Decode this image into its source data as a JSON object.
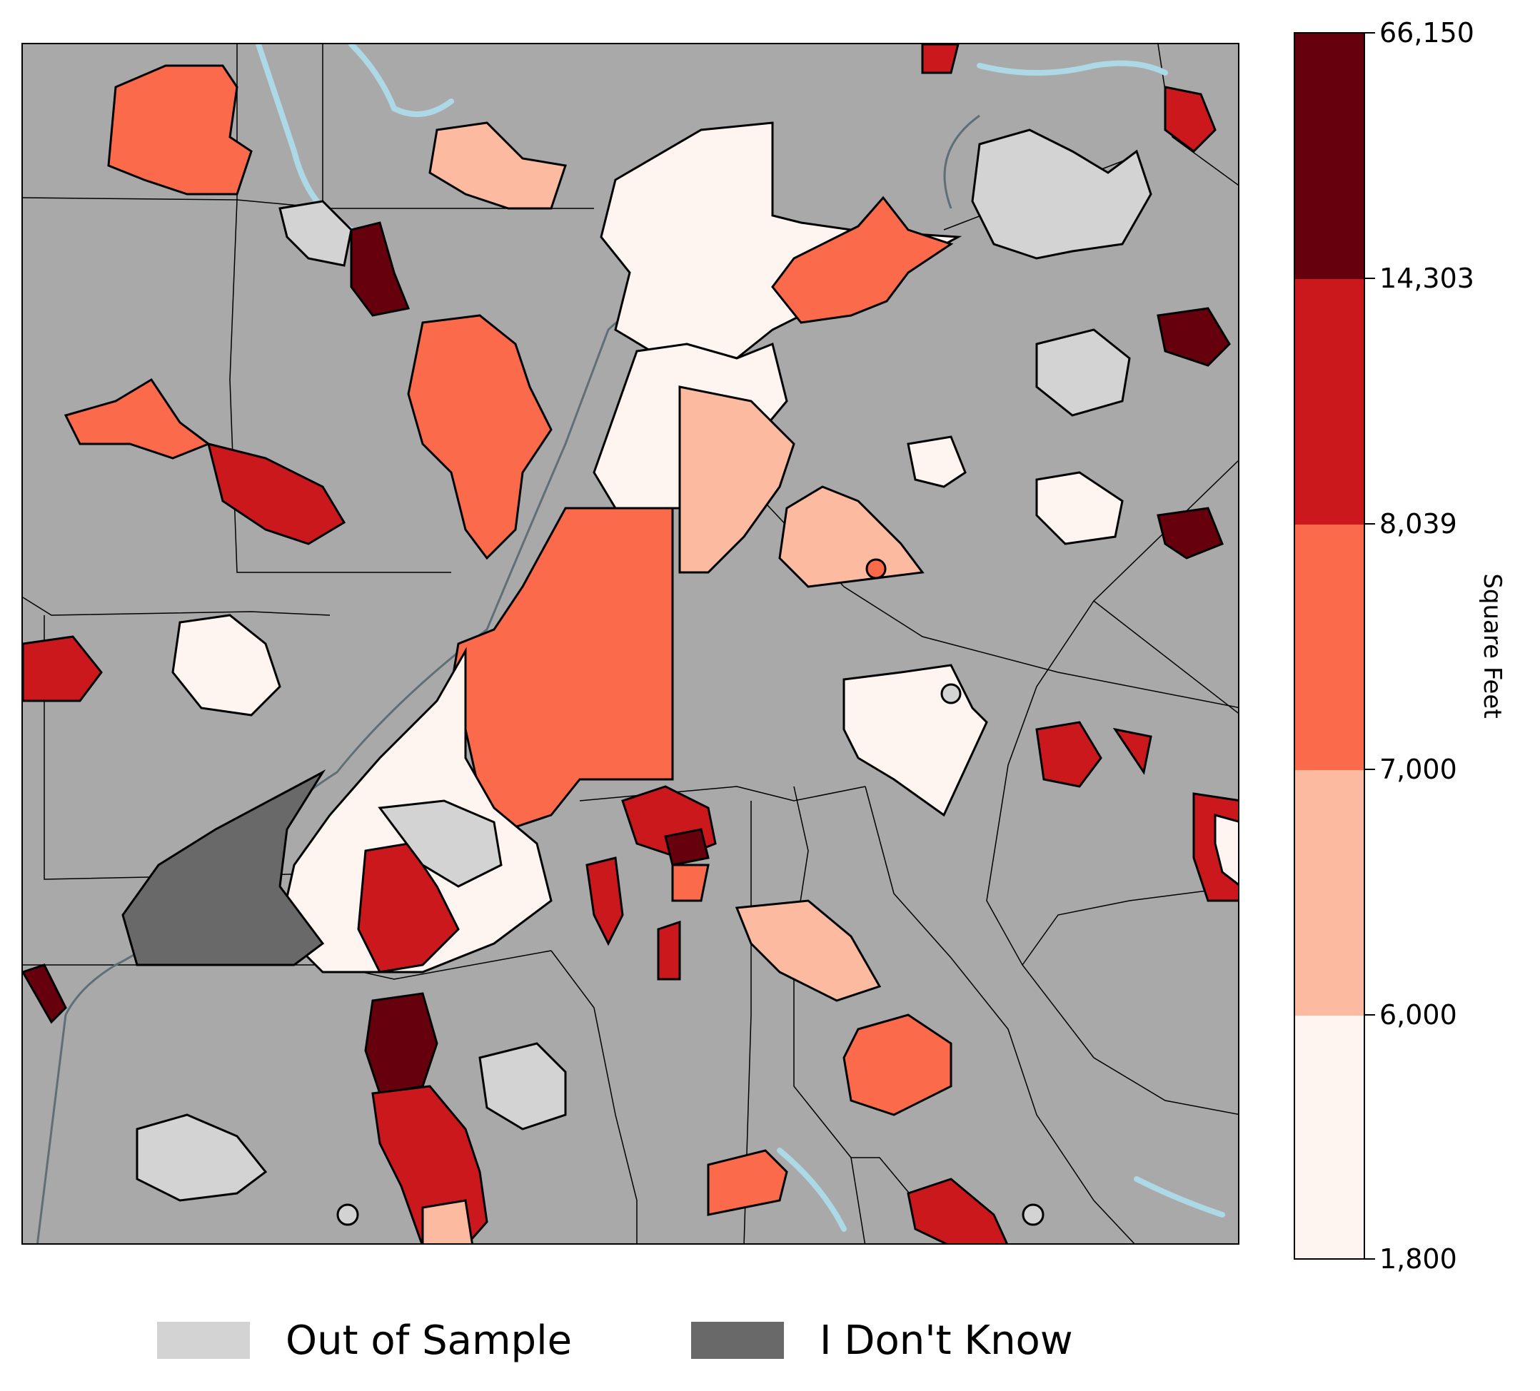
{
  "map": {
    "colors": {
      "background": "#a9a9a9",
      "water": "#add8e6",
      "boundary": "#000000",
      "bin_1": "#fff5f0",
      "bin_2": "#fcbba1",
      "bin_3": "#fb6a4a",
      "bin_4": "#cb181d",
      "bin_5": "#67000d",
      "out_of_sample": "#d3d3d3",
      "dont_know": "#696969"
    }
  },
  "colorbar": {
    "label": "Square Feet",
    "ticks": [
      "66,150",
      "14,303",
      "8,039",
      "7,000",
      "6,000",
      "1,800"
    ],
    "bins": [
      {
        "from": "1,800",
        "to": "6,000",
        "color": "#fff5f0"
      },
      {
        "from": "6,000",
        "to": "7,000",
        "color": "#fcbba1"
      },
      {
        "from": "7,000",
        "to": "8,039",
        "color": "#fb6a4a"
      },
      {
        "from": "8,039",
        "to": "14,303",
        "color": "#cb181d"
      },
      {
        "from": "14,303",
        "to": "66,150",
        "color": "#67000d"
      }
    ]
  },
  "legend": {
    "out_of_sample": {
      "label": "Out of Sample",
      "color": "#d3d3d3"
    },
    "dont_know": {
      "label": "I Don't Know",
      "color": "#696969"
    }
  }
}
